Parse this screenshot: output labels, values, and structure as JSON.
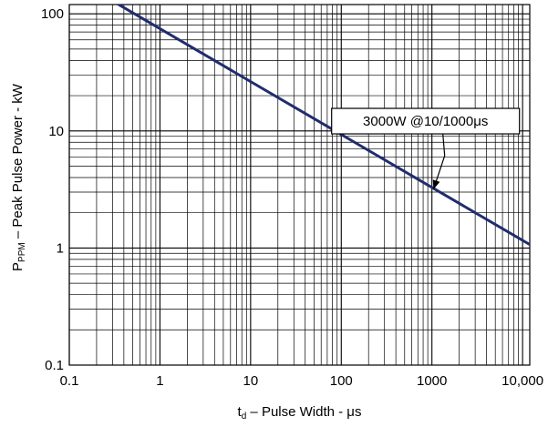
{
  "chart_data": {
    "type": "line",
    "x_scale": "log",
    "y_scale": "log",
    "xlim": [
      0.1,
      12000
    ],
    "ylim": [
      0.1,
      120
    ],
    "grid": true,
    "x_ticks": [
      {
        "value": 0.1,
        "label": "0.1"
      },
      {
        "value": 1,
        "label": "1"
      },
      {
        "value": 10,
        "label": "10"
      },
      {
        "value": 100,
        "label": "100"
      },
      {
        "value": 1000,
        "label": "1000"
      },
      {
        "value": 10000,
        "label": "10,000"
      }
    ],
    "y_ticks": [
      {
        "value": 0.1,
        "label": "0.1"
      },
      {
        "value": 1,
        "label": "1"
      },
      {
        "value": 10,
        "label": "10"
      },
      {
        "value": 100,
        "label": "100"
      }
    ],
    "xlabel": {
      "main": "t",
      "sub": "d",
      "rest": " – Pulse Width  - μs"
    },
    "ylabel": {
      "main": "P",
      "sub": "PPM",
      "rest": "  – Peak Pulse Power - kW"
    },
    "series": [
      {
        "color": "#1f2d6e",
        "x": [
          0.32,
          12000
        ],
        "y": [
          125,
          1.07
        ]
      }
    ],
    "annotation": {
      "text": "3000W  @10/1000μs",
      "point": {
        "x": 1000,
        "y": 3
      }
    }
  }
}
